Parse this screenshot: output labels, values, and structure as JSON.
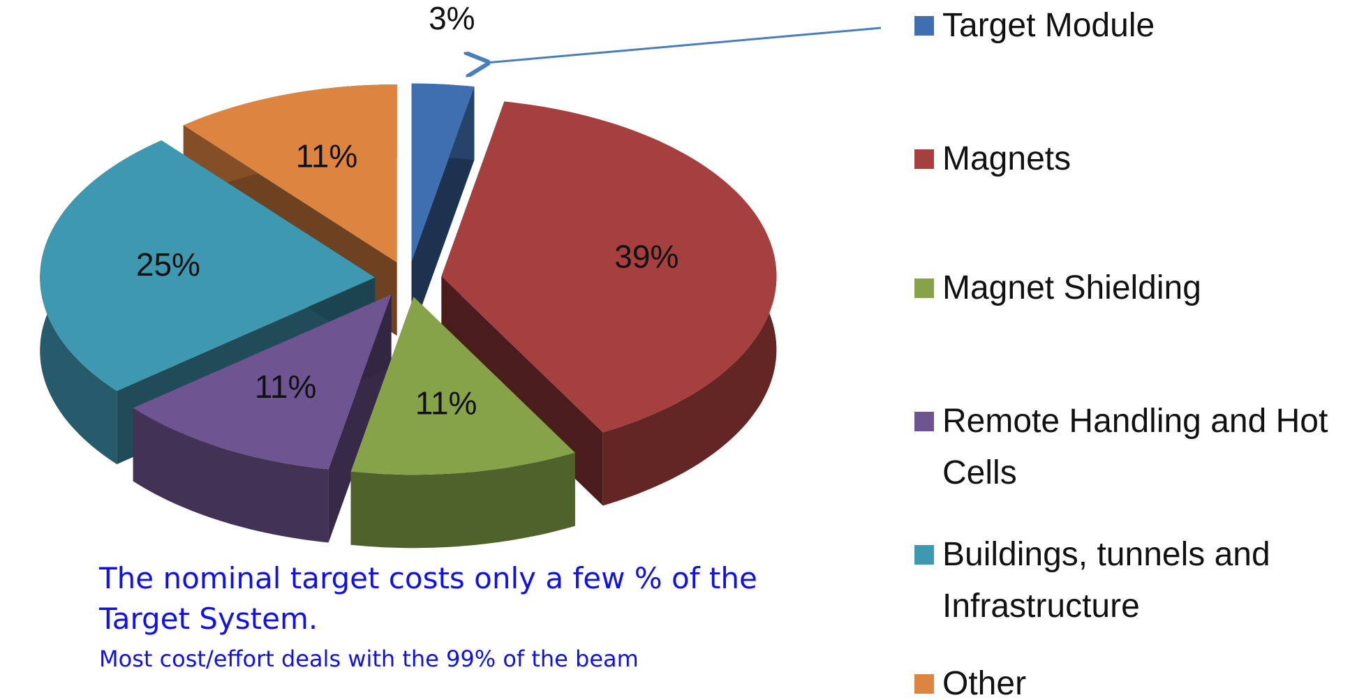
{
  "chart_data": {
    "type": "pie3d",
    "categories": [
      "Target Module",
      "Magnets",
      "Magnet Shielding",
      "Remote Handling and Hot Cells",
      "Buildings, tunnels and Infrastructure",
      "Other"
    ],
    "values": [
      3,
      39,
      11,
      11,
      25,
      11
    ],
    "value_labels": [
      "3%",
      "39%",
      "11%",
      "11%",
      "25%",
      "11%"
    ],
    "colors": [
      "#3f6fb0",
      "#a5403e",
      "#86a34a",
      "#6e5490",
      "#3e98b0",
      "#dc8440"
    ],
    "legend": "right",
    "annotations": [
      "The nominal target costs only a few % of the Target System.",
      "Most cost/effort deals with the 99% of the beam"
    ]
  }
}
